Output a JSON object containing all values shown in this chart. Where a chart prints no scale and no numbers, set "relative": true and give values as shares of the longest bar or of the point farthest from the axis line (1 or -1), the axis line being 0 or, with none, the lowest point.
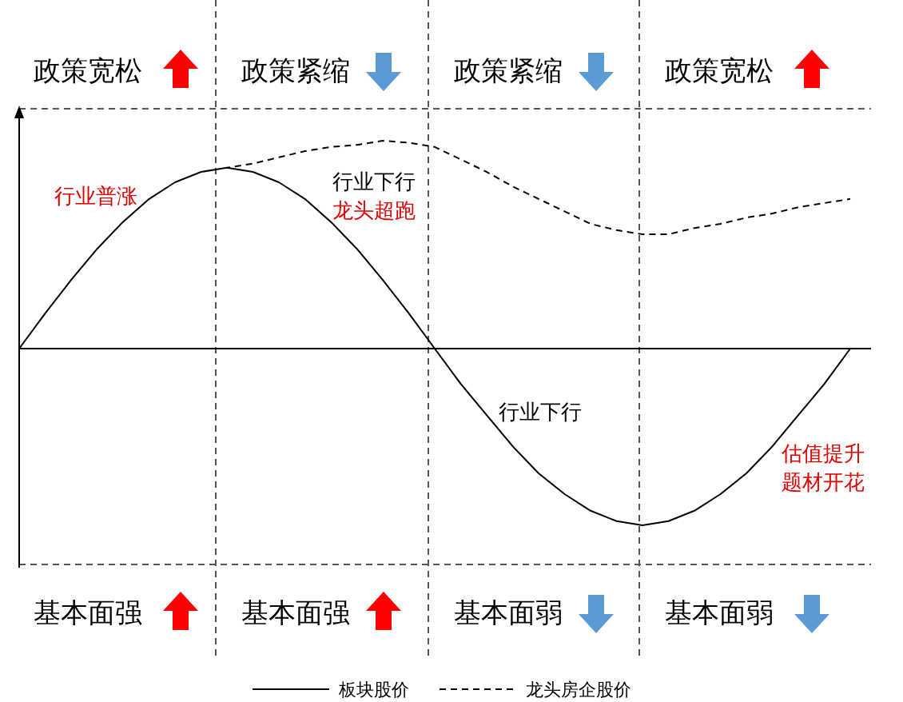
{
  "chart_data": {
    "type": "line",
    "relative": true,
    "legend": "bottom",
    "categories": [
      null,
      null,
      null,
      null,
      null,
      null,
      null,
      null,
      null,
      null,
      null,
      null,
      null,
      null,
      null,
      null,
      null,
      null,
      null,
      null,
      null,
      null,
      null,
      null,
      null,
      null,
      null,
      null,
      null,
      null,
      null,
      null,
      null
    ],
    "series": [
      {
        "name": "板块股价",
        "color": "#000000",
        "line_style": "solid",
        "values": [
          0,
          0.17,
          0.33,
          0.48,
          0.61,
          0.72,
          0.8,
          0.85,
          0.87,
          0.85,
          0.8,
          0.72,
          0.61,
          0.48,
          0.33,
          0.17,
          0,
          -0.17,
          -0.32,
          -0.47,
          -0.6,
          -0.7,
          -0.78,
          -0.83,
          -0.85,
          -0.83,
          -0.78,
          -0.7,
          -0.6,
          -0.47,
          -0.32,
          -0.17,
          0
        ]
      },
      {
        "name": "龙头房企股价",
        "color": "#000000",
        "line_style": "dashed",
        "values": [
          null,
          null,
          null,
          null,
          null,
          null,
          null,
          null,
          0.87,
          0.89,
          0.92,
          0.95,
          0.97,
          0.98,
          1,
          0.99,
          0.97,
          0.91,
          0.85,
          0.78,
          0.72,
          0.66,
          0.6,
          0.57,
          0.55,
          0.55,
          0.58,
          0.6,
          0.63,
          0.65,
          0.68,
          0.7,
          0.72
        ]
      }
    ],
    "annotations": [
      "政策宽松",
      "政策紧缩",
      "政策紧缩",
      "政策宽松",
      "基本面强",
      "基本面强",
      "基本面弱",
      "基本面弱",
      "行业普涨",
      "行业下行",
      "龙头超跑",
      "行业下行",
      "估值提升",
      "题材开花"
    ]
  }
}
